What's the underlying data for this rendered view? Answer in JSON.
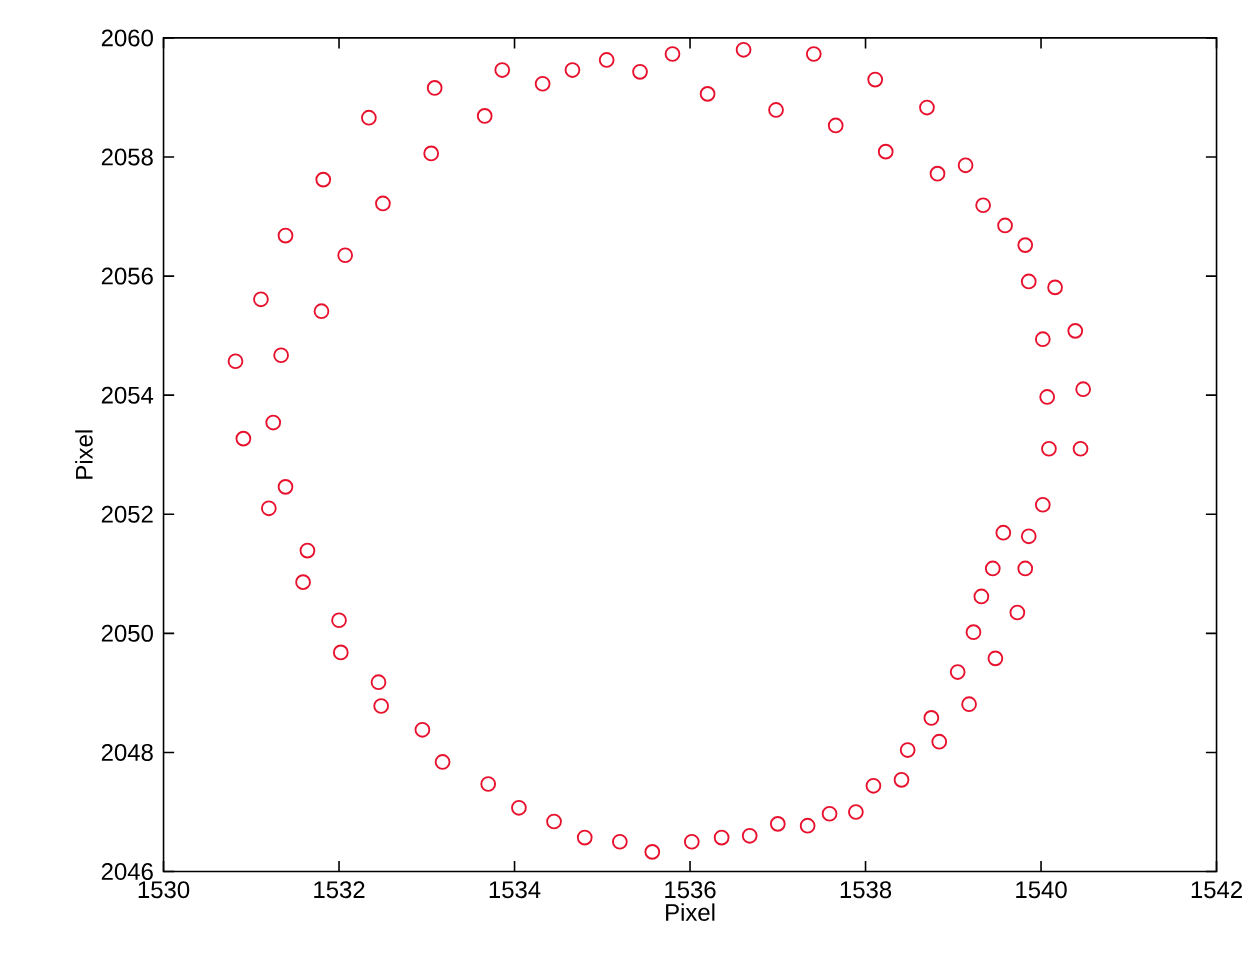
{
  "chart_data": {
    "type": "scatter",
    "xlabel": "Pixel",
    "ylabel": "Pixel",
    "marker": "circle",
    "grid": false,
    "xlim": [
      1530,
      1542
    ],
    "ylim": [
      2046,
      2060
    ],
    "xticks": [
      1530,
      1532,
      1534,
      1536,
      1538,
      1540,
      1542
    ],
    "yticks": [
      2046,
      2048,
      2050,
      2052,
      2054,
      2056,
      2058,
      2060
    ],
    "series": [
      {
        "color": "#e8112d",
        "x": [
          1530.82,
          1531.34,
          1530.91,
          1531.25,
          1531.11,
          1531.8,
          1531.39,
          1532.07,
          1531.82,
          1532.5,
          1532.34,
          1533.05,
          1533.09,
          1533.66,
          1533.86,
          1534.32,
          1534.66,
          1535.05,
          1535.43,
          1535.8,
          1536.61,
          1537.41,
          1536.2,
          1536.98,
          1538.11,
          1537.66,
          1538.7,
          1538.23,
          1539.14,
          1538.82,
          1539.34,
          1539.59,
          1539.82,
          1539.86,
          1540.16,
          1540.39,
          1540.02,
          1540.48,
          1540.07,
          1540.45,
          1540.09,
          1531.39,
          1531.2,
          1531.64,
          1531.59,
          1532.0,
          1532.02,
          1532.45,
          1532.48,
          1532.95,
          1533.18,
          1533.7,
          1534.05,
          1534.45,
          1534.8,
          1535.2,
          1535.57,
          1536.02,
          1536.36,
          1536.68,
          1537.0,
          1537.34,
          1537.59,
          1537.89,
          1538.09,
          1538.41,
          1538.48,
          1538.84,
          1538.75,
          1539.18,
          1539.05,
          1539.48,
          1539.23,
          1539.73,
          1539.32,
          1539.45,
          1539.82,
          1539.57,
          1539.86,
          1540.02
        ],
        "values": [
          2054.57,
          2054.67,
          2053.27,
          2053.54,
          2055.61,
          2055.41,
          2056.68,
          2056.35,
          2057.62,
          2057.22,
          2058.66,
          2058.06,
          2059.16,
          2058.69,
          2059.46,
          2059.23,
          2059.46,
          2059.63,
          2059.43,
          2059.73,
          2059.8,
          2059.73,
          2059.06,
          2058.79,
          2059.3,
          2058.53,
          2058.83,
          2058.09,
          2057.86,
          2057.72,
          2057.19,
          2056.85,
          2056.52,
          2055.91,
          2055.81,
          2055.08,
          2054.94,
          2054.1,
          2053.97,
          2053.1,
          2053.1,
          2052.46,
          2052.1,
          2051.39,
          2050.86,
          2050.22,
          2049.68,
          2049.18,
          2048.78,
          2048.38,
          2047.84,
          2047.47,
          2047.07,
          2046.84,
          2046.57,
          2046.5,
          2046.33,
          2046.5,
          2046.57,
          2046.6,
          2046.8,
          2046.77,
          2046.97,
          2047.0,
          2047.44,
          2047.54,
          2048.04,
          2048.18,
          2048.58,
          2048.81,
          2049.35,
          2049.58,
          2050.02,
          2050.35,
          2050.62,
          2051.09,
          2051.09,
          2051.69,
          2051.63,
          2052.16
        ]
      }
    ]
  }
}
